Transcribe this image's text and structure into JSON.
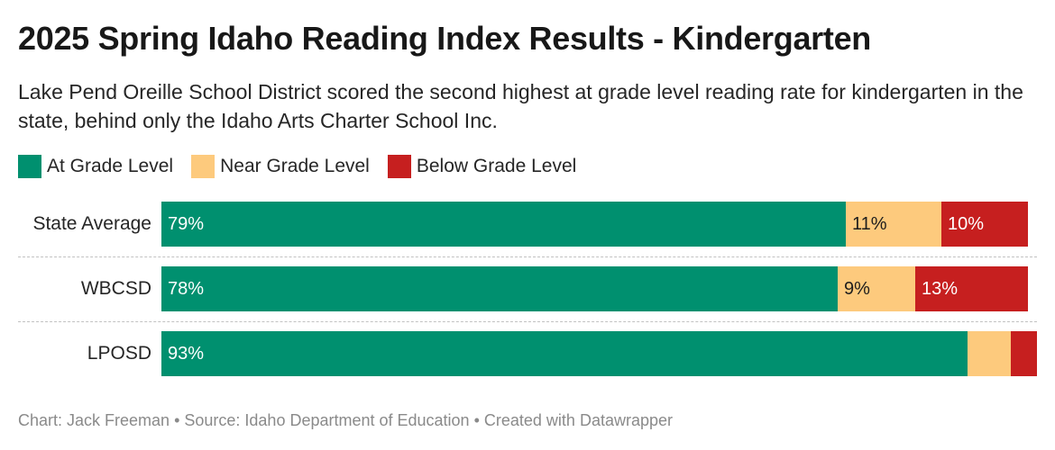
{
  "title": "2025 Spring Idaho Reading Index Results - Kindergarten",
  "subtitle": "Lake Pend Oreille School District scored the second highest at grade level reading rate for kindergarten in the state, behind only the Idaho Arts Charter School Inc.",
  "footer": {
    "chart_by": "Chart: Jack Freeman",
    "source": "Source: Idaho Department of Education",
    "created_with": "Created with Datawrapper",
    "separator": " • "
  },
  "colors": {
    "at_grade": "#00906f",
    "near_grade": "#fdca7d",
    "below_grade": "#c61f1f"
  },
  "chart_data": {
    "type": "bar",
    "orientation": "horizontal",
    "stacked": true,
    "categories": [
      "State Average",
      "WBCSD",
      "LPOSD"
    ],
    "series": [
      {
        "name": "At Grade Level",
        "color": "#00906f",
        "values": [
          79,
          78,
          93
        ],
        "labels": [
          "79%",
          "78%",
          "93%"
        ]
      },
      {
        "name": "Near Grade Level",
        "color": "#fdca7d",
        "values": [
          11,
          9,
          5
        ],
        "labels": [
          "11%",
          "9%",
          ""
        ]
      },
      {
        "name": "Below Grade Level",
        "color": "#c61f1f",
        "values": [
          10,
          13,
          3
        ],
        "labels": [
          "10%",
          "13%",
          ""
        ]
      }
    ],
    "legend_position": "top-left",
    "unit": "%"
  }
}
